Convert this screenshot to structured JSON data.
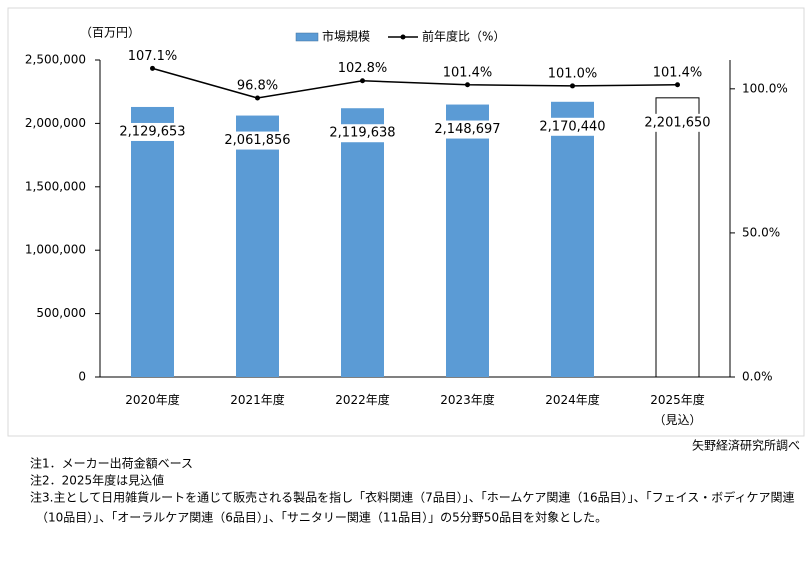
{
  "chart_data": {
    "type": "bar_line",
    "unit_label": "（百万円）",
    "categories": [
      "2020年度",
      "2021年度",
      "2022年度",
      "2023年度",
      "2024年度",
      "2025年度\n（見込）"
    ],
    "series": [
      {
        "name": "市場規模",
        "color": "#5b9bd5",
        "colors": [
          "#5b9bd5",
          "#5b9bd5",
          "#5b9bd5",
          "#5b9bd5",
          "#5b9bd5",
          "#ffffff"
        ],
        "values": [
          2129653,
          2061856,
          2119638,
          2148697,
          2170440,
          2201650
        ],
        "value_labels": [
          "2,129,653",
          "2,061,856",
          "2,119,638",
          "2,148,697",
          "2,170,440",
          "2,201,650"
        ]
      },
      {
        "name": "前年度比（%）",
        "color": "#000000",
        "axis": "y2",
        "values": [
          107.1,
          96.8,
          102.8,
          101.4,
          101.0,
          101.4
        ],
        "value_labels": [
          "107.1%",
          "96.8%",
          "102.8%",
          "101.4%",
          "101.0%",
          "101.4%"
        ]
      }
    ],
    "ylim": [
      0,
      2500000
    ],
    "yticks": [
      0,
      {
        "value": 500000,
        "label": "500,000"
      },
      {
        "value": 1000000,
        "label": "1,000,000"
      },
      {
        "value": 1500000,
        "label": "1,500,000"
      },
      {
        "value": 2000000,
        "label": "2,000,000"
      },
      {
        "value": 2500000,
        "label": "2,500,000"
      }
    ],
    "y2lim": [
      0,
      110
    ],
    "y2ticks": [
      {
        "value": 0,
        "label": "0.0%"
      },
      {
        "value": 50,
        "label": "50.0%"
      },
      {
        "value": 100,
        "label": "100.0%"
      }
    ],
    "source": "矢野経済研究所調べ"
  },
  "notes": [
    "注1．メーカー出荷金額ベース",
    "注2．2025年度は見込値",
    "注3.主として日用雑貨ルートを通じて販売される製品を指し「衣料関連（7品目）」、「ホームケア関連（16品目）」、「フェイス・ボディケア関連",
    "（10品目）」、「オーラルケア関連（6品目）」、「サニタリー関連（11品目）」の5分野50品目を対象とした。"
  ]
}
